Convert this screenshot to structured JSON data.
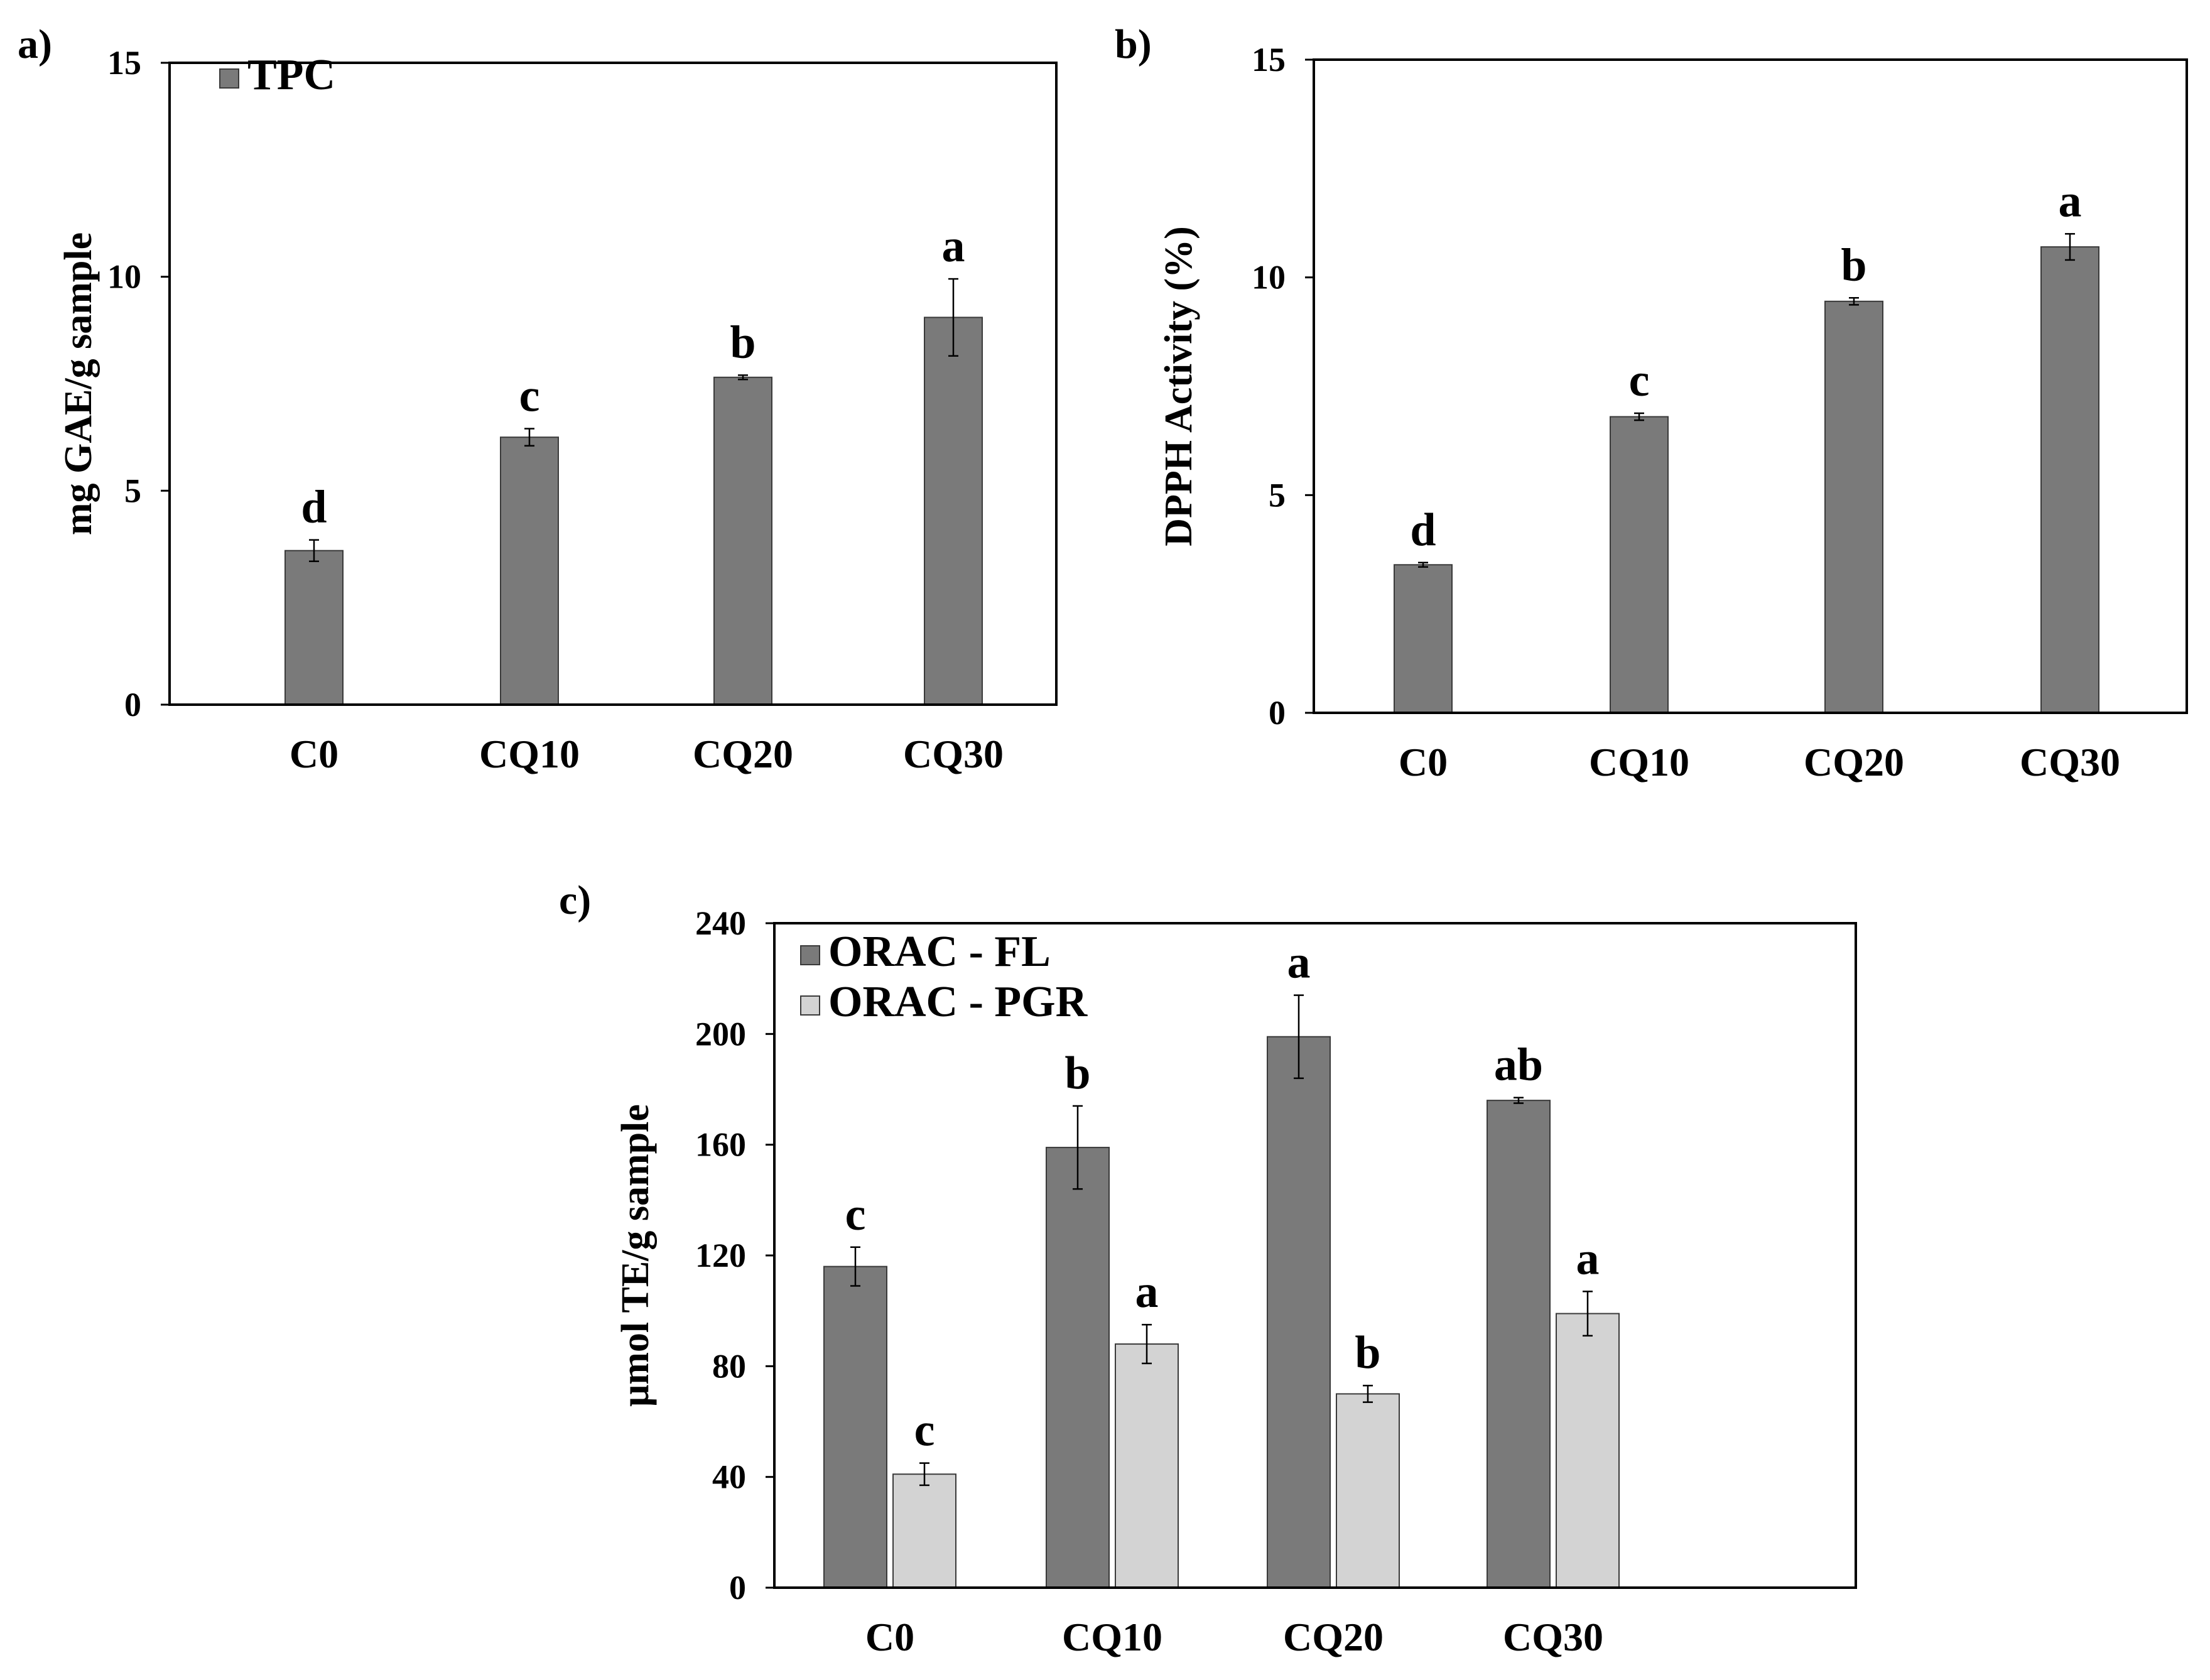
{
  "chart_data": [
    {
      "panel": "a)",
      "type": "bar",
      "categories": [
        "C0",
        "CQ10",
        "CQ20",
        "CQ30"
      ],
      "ylabel": "mg GAE/g sample",
      "yticks": [
        0,
        5,
        10,
        15
      ],
      "ylim": [
        0,
        15
      ],
      "legend_position": "top-left",
      "series": [
        {
          "name": "TPC",
          "color": "#7a7a7a",
          "values": [
            3.6,
            6.25,
            7.65,
            9.05
          ],
          "errors": [
            0.25,
            0.2,
            0.05,
            0.9
          ],
          "letters": [
            "d",
            "c",
            "b",
            "a"
          ]
        }
      ]
    },
    {
      "panel": "b)",
      "type": "bar",
      "categories": [
        "C0",
        "CQ10",
        "CQ20",
        "CQ30"
      ],
      "ylabel": "DPPH Activity (%)",
      "yticks": [
        0,
        5,
        10,
        15
      ],
      "ylim": [
        0,
        15
      ],
      "legend_position": "none",
      "series": [
        {
          "name": "DPPH",
          "color": "#7a7a7a",
          "values": [
            3.4,
            6.8,
            9.45,
            10.7
          ],
          "errors": [
            0.05,
            0.08,
            0.08,
            0.3
          ],
          "letters": [
            "d",
            "c",
            "b",
            "a"
          ]
        }
      ]
    },
    {
      "panel": "c)",
      "type": "bar",
      "categories": [
        "C0",
        "CQ10",
        "CQ20",
        "CQ30"
      ],
      "ylabel": "μmol TE/g sample",
      "yticks": [
        0,
        40,
        80,
        120,
        160,
        200,
        240
      ],
      "ylim": [
        0,
        240
      ],
      "legend_position": "top-left",
      "series": [
        {
          "name": "ORAC - FL",
          "color": "#7a7a7a",
          "values": [
            116,
            159,
            199,
            176
          ],
          "errors": [
            7,
            15,
            15,
            1
          ],
          "letters": [
            "c",
            "b",
            "a",
            "ab"
          ]
        },
        {
          "name": "ORAC - PGR",
          "color": "#d3d3d3",
          "values": [
            41,
            88,
            70,
            99
          ],
          "errors": [
            4,
            7,
            3,
            8
          ],
          "letters": [
            "c",
            "a",
            "b",
            "a"
          ]
        }
      ]
    }
  ]
}
